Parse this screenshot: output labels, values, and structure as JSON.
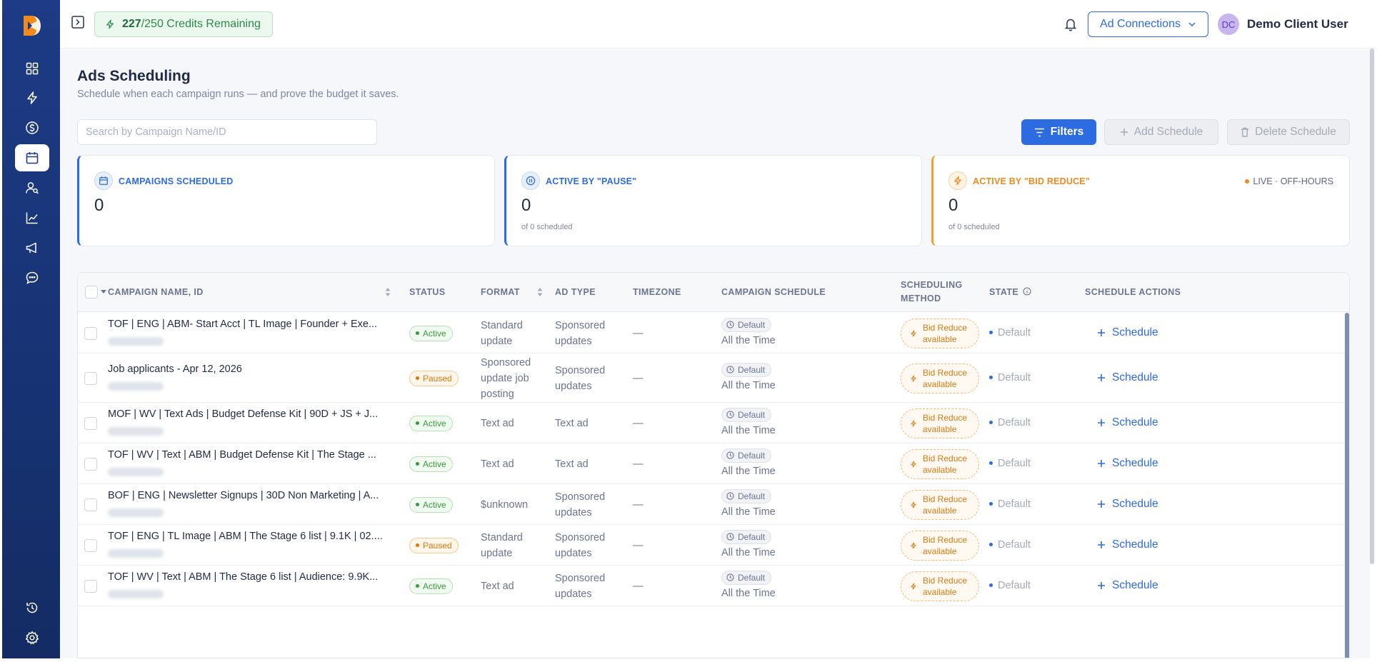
{
  "header": {
    "credits_used": "227",
    "credits_text": "/250 Credits Remaining",
    "ad_connections_label": "Ad Connections",
    "user_initials": "DC",
    "user_name": "Demo Client User"
  },
  "page": {
    "title": "Ads Scheduling",
    "subtitle": "Schedule when each campaign runs — and prove the budget it saves.",
    "search_placeholder": "Search by Campaign Name/ID"
  },
  "toolbar": {
    "filters_label": "Filters",
    "add_schedule_label": "Add Schedule",
    "delete_schedule_label": "Delete Schedule"
  },
  "cards": [
    {
      "title": "CAMPAIGNS SCHEDULED",
      "value": "0",
      "sub": "",
      "accent": "#2d6ce0"
    },
    {
      "title": "ACTIVE BY \"PAUSE\"",
      "value": "0",
      "sub": "of 0 scheduled",
      "accent": "#2d6ce0"
    },
    {
      "title": "ACTIVE BY \"BID REDUCE\"",
      "value": "0",
      "sub": "of 0 scheduled",
      "accent": "#f0a138",
      "live_label": "LIVE · OFF-HOURS"
    }
  ],
  "table": {
    "columns": {
      "name": "CAMPAIGN NAME, ID",
      "status": "STATUS",
      "format": "FORMAT",
      "ad_type": "AD TYPE",
      "timezone": "TIMEZONE",
      "schedule": "CAMPAIGN SCHEDULE",
      "method_1": "SCHEDULING",
      "method_2": "METHOD",
      "state": "STATE",
      "actions": "SCHEDULE ACTIONS"
    },
    "rows": [
      {
        "name": "TOF | ENG | ABM- Start Acct | TL Image | Founder + Exe...",
        "status": "Active",
        "format": [
          "Standard",
          "update"
        ],
        "ad_type": [
          "Sponsored",
          "updates"
        ],
        "timezone": "—",
        "pill": "Default",
        "schedule": "All the Time",
        "bid_1": "Bid Reduce",
        "bid_2": "available",
        "state": "Default",
        "action": "Schedule"
      },
      {
        "name": "Job applicants - Apr 12, 2026",
        "status": "Paused",
        "format": [
          "Sponsored",
          "update job",
          "posting"
        ],
        "ad_type": [
          "Sponsored",
          "updates"
        ],
        "timezone": "—",
        "pill": "Default",
        "schedule": "All the Time",
        "bid_1": "Bid Reduce",
        "bid_2": "available",
        "state": "Default",
        "action": "Schedule"
      },
      {
        "name": "MOF | WV | Text Ads | Budget Defense Kit | 90D + JS + J...",
        "status": "Active",
        "format": [
          "Text ad"
        ],
        "ad_type": [
          "Text ad"
        ],
        "timezone": "—",
        "pill": "Default",
        "schedule": "All the Time",
        "bid_1": "Bid Reduce",
        "bid_2": "available",
        "state": "Default",
        "action": "Schedule"
      },
      {
        "name": "TOF | WV | Text | ABM | Budget Defense Kit | The Stage ...",
        "status": "Active",
        "format": [
          "Text ad"
        ],
        "ad_type": [
          "Text ad"
        ],
        "timezone": "—",
        "pill": "Default",
        "schedule": "All the Time",
        "bid_1": "Bid Reduce",
        "bid_2": "available",
        "state": "Default",
        "action": "Schedule"
      },
      {
        "name": "BOF | ENG | Newsletter Signups | 30D Non Marketing | A...",
        "status": "Active",
        "format": [
          "$unknown"
        ],
        "ad_type": [
          "Sponsored",
          "updates"
        ],
        "timezone": "—",
        "pill": "Default",
        "schedule": "All the Time",
        "bid_1": "Bid Reduce",
        "bid_2": "available",
        "state": "Default",
        "action": "Schedule"
      },
      {
        "name": "TOF | ENG | TL Image | ABM | The Stage 6 list | 9.1K | 02....",
        "status": "Paused",
        "format": [
          "Standard",
          "update"
        ],
        "ad_type": [
          "Sponsored",
          "updates"
        ],
        "timezone": "—",
        "pill": "Default",
        "schedule": "All the Time",
        "bid_1": "Bid Reduce",
        "bid_2": "available",
        "state": "Default",
        "action": "Schedule"
      },
      {
        "name": "TOF | WV | Text | ABM | The Stage 6 list | Audience: 9.9K...",
        "status": "Active",
        "format": [
          "Text ad"
        ],
        "ad_type": [
          "Sponsored",
          "updates"
        ],
        "timezone": "—",
        "pill": "Default",
        "schedule": "All the Time",
        "bid_1": "Bid Reduce",
        "bid_2": "available",
        "state": "Default",
        "action": "Schedule"
      }
    ]
  },
  "colors": {
    "primary": "#2d6ce0",
    "sidebar": "#1a377c",
    "accent_orange": "#f0a138",
    "success": "#3a9a3f"
  },
  "icons": {
    "nav": [
      "dashboard-icon",
      "lightning-icon",
      "dollar-icon",
      "calendar-icon",
      "audience-icon",
      "chart-icon",
      "megaphone-icon",
      "chat-icon"
    ],
    "nav_bottom": [
      "history-icon",
      "gear-icon"
    ]
  }
}
